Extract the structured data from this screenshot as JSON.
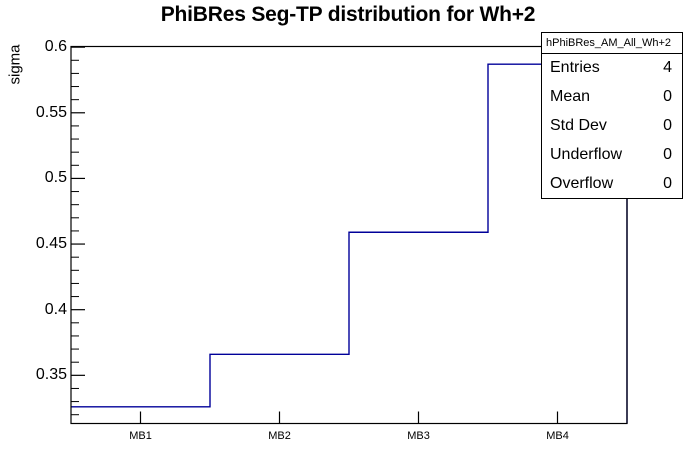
{
  "title": "PhiBRes Seg-TP distribution for Wh+2",
  "colors": {
    "background": "#ffffff",
    "frame": "#000000",
    "histogram_line": "#000099",
    "text": "#000000"
  },
  "chart_data": {
    "type": "bar",
    "style": "root-step-histogram-outline",
    "title": "PhiBRes Seg-TP distribution for Wh+2",
    "xlabel": "",
    "ylabel": "sigma",
    "categories": [
      "MB1",
      "MB2",
      "MB3",
      "MB4"
    ],
    "values": [
      0.326,
      0.366,
      0.459,
      0.587
    ],
    "ylim": [
      0.3133,
      0.6005
    ],
    "yticks": [
      0.35,
      0.4,
      0.45,
      0.5,
      0.55,
      0.6
    ],
    "ytick_labels": [
      "0.35",
      "0.4",
      "0.45",
      "0.5",
      "0.55",
      "0.6"
    ],
    "minor_tick_step": 0.01,
    "grid": false,
    "legend": false,
    "line_color": "#000099",
    "stats_box": {
      "title": "hPhiBRes_AM_All_Wh+2",
      "rows": [
        {
          "label": "Entries",
          "value": "4"
        },
        {
          "label": "Mean",
          "value": "0"
        },
        {
          "label": "Std Dev",
          "value": "0"
        },
        {
          "label": "Underflow",
          "value": "0"
        },
        {
          "label": "Overflow",
          "value": "0"
        }
      ]
    }
  }
}
